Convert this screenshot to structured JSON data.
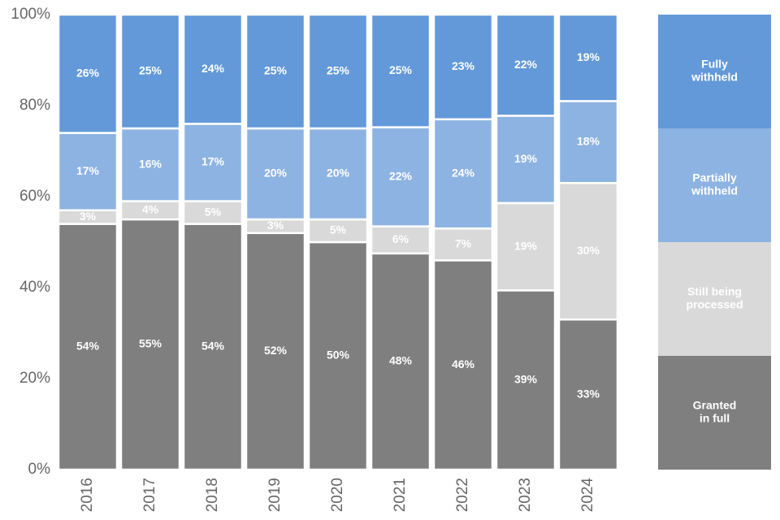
{
  "chart_data": {
    "type": "bar",
    "stacked": true,
    "normalized": true,
    "categories": [
      "2016",
      "2017",
      "2018",
      "2019",
      "2020",
      "2021",
      "2022",
      "2023",
      "2024"
    ],
    "series": [
      {
        "name": "Granted in full",
        "legend_lines": [
          "Granted",
          "in full"
        ],
        "color": "#7f7f7f",
        "values": [
          54,
          55,
          54,
          52,
          50,
          48,
          46,
          39,
          33
        ]
      },
      {
        "name": "Still being processed",
        "legend_lines": [
          "Still being",
          "processed"
        ],
        "color": "#d9d9d9",
        "values": [
          3,
          4,
          5,
          3,
          5,
          6,
          7,
          19,
          30
        ]
      },
      {
        "name": "Partially withheld",
        "legend_lines": [
          "Partially",
          "withheld"
        ],
        "color": "#8db3e2",
        "values": [
          17,
          16,
          17,
          20,
          20,
          22,
          24,
          19,
          18
        ]
      },
      {
        "name": "Fully withheld",
        "legend_lines": [
          "Fully",
          "withheld"
        ],
        "color": "#6399d9",
        "values": [
          26,
          25,
          24,
          25,
          25,
          25,
          23,
          22,
          19
        ]
      }
    ],
    "y_ticks": [
      "0%",
      "20%",
      "40%",
      "60%",
      "80%",
      "100%"
    ],
    "ylim": [
      0,
      100
    ],
    "title": "",
    "xlabel": "",
    "ylabel": "",
    "grid": false,
    "legend": "right"
  }
}
